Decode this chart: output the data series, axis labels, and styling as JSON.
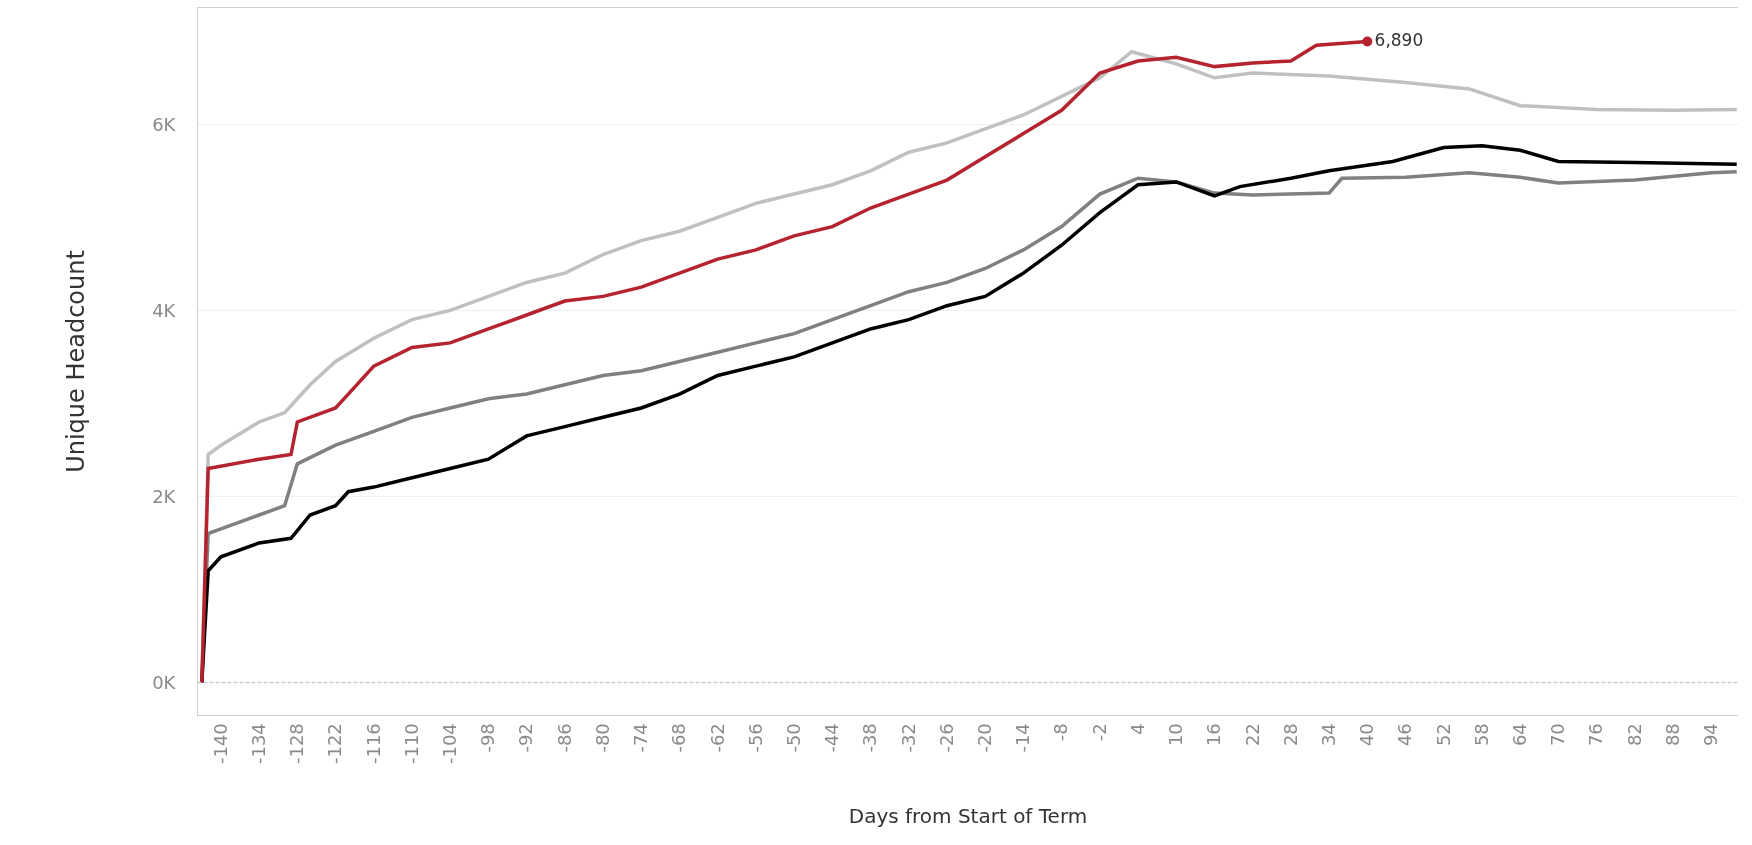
{
  "chart_data": {
    "type": "line",
    "xlabel": "Days from Start of Term",
    "ylabel": "Unique Headcount",
    "xlim": [
      -143.6,
      98.2
    ],
    "ylim": [
      -350,
      7250
    ],
    "xticks": [
      -140,
      -134,
      -128,
      -122,
      -116,
      -110,
      -104,
      -98,
      -92,
      -86,
      -80,
      -74,
      -68,
      -62,
      -56,
      -50,
      -44,
      -38,
      -32,
      -26,
      -20,
      -14,
      -8,
      -2,
      4,
      10,
      16,
      22,
      28,
      34,
      40,
      46,
      52,
      58,
      64,
      70,
      76,
      82,
      88,
      94
    ],
    "yticks": [
      {
        "value": 0,
        "label": "0K"
      },
      {
        "value": 2000,
        "label": "2K"
      },
      {
        "value": 4000,
        "label": "4K"
      },
      {
        "value": 6000,
        "label": "6K"
      }
    ],
    "grid": "y",
    "line_style": "solid",
    "ref_lines": [
      {
        "axis": "y",
        "value": 0,
        "label": null,
        "color": "#c8c8c8",
        "line_style": "dotted"
      }
    ],
    "series": [
      {
        "color": "#c0c0c0",
        "x": [
          -143,
          -142,
          -140,
          -134,
          -130,
          -126,
          -122,
          -116,
          -110,
          -104,
          -98,
          -92,
          -86,
          -80,
          -74,
          -68,
          -62,
          -56,
          -50,
          -44,
          -38,
          -32,
          -26,
          -20,
          -14,
          -8,
          -2,
          3,
          10,
          16,
          22,
          34,
          46,
          56,
          64,
          76,
          88,
          98
        ],
        "values": [
          0,
          2450,
          2550,
          2800,
          2900,
          3200,
          3450,
          3700,
          3900,
          4000,
          4150,
          4300,
          4400,
          4600,
          4750,
          4850,
          5000,
          5150,
          5250,
          5350,
          5500,
          5700,
          5800,
          5950,
          6100,
          6300,
          6500,
          6780,
          6650,
          6500,
          6550,
          6520,
          6450,
          6380,
          6200,
          6160,
          6150,
          6160
        ]
      },
      {
        "color": "#808080",
        "x": [
          -143,
          -142,
          -140,
          -134,
          -130,
          -128,
          -122,
          -116,
          -110,
          -104,
          -98,
          -92,
          -86,
          -80,
          -74,
          -68,
          -62,
          -56,
          -50,
          -44,
          -38,
          -32,
          -26,
          -20,
          -14,
          -8,
          -2,
          4,
          10,
          16,
          22,
          34,
          36,
          46,
          56,
          64,
          70,
          82,
          94,
          98
        ],
        "values": [
          0,
          1600,
          1650,
          1800,
          1900,
          2350,
          2550,
          2700,
          2850,
          2950,
          3050,
          3100,
          3200,
          3300,
          3350,
          3450,
          3550,
          3650,
          3750,
          3900,
          4050,
          4200,
          4300,
          4450,
          4650,
          4900,
          5250,
          5420,
          5380,
          5260,
          5240,
          5260,
          5420,
          5430,
          5480,
          5430,
          5370,
          5400,
          5480,
          5490
        ]
      },
      {
        "color": "#000000",
        "x": [
          -143,
          -142,
          -140,
          -134,
          -129,
          -126,
          -122,
          -120,
          -116,
          -110,
          -104,
          -98,
          -92,
          -86,
          -80,
          -74,
          -68,
          -62,
          -56,
          -50,
          -44,
          -38,
          -32,
          -26,
          -20,
          -14,
          -8,
          -2,
          4,
          10,
          16,
          20,
          28,
          34,
          44,
          52,
          58,
          64,
          70,
          82,
          98
        ],
        "values": [
          0,
          1200,
          1350,
          1500,
          1550,
          1800,
          1900,
          2050,
          2100,
          2200,
          2300,
          2400,
          2650,
          2750,
          2850,
          2950,
          3100,
          3300,
          3400,
          3500,
          3650,
          3800,
          3900,
          4050,
          4150,
          4400,
          4700,
          5050,
          5350,
          5380,
          5230,
          5330,
          5420,
          5500,
          5600,
          5750,
          5770,
          5720,
          5600,
          5590,
          5570
        ]
      },
      {
        "color": "#b5232f",
        "x": [
          -143,
          -142,
          -134,
          -129,
          -128,
          -122,
          -120,
          -116,
          -110,
          -104,
          -98,
          -92,
          -86,
          -80,
          -74,
          -68,
          -62,
          -56,
          -50,
          -44,
          -38,
          -32,
          -26,
          -20,
          -14,
          -8,
          -2,
          4,
          10,
          16,
          22,
          28,
          32,
          40
        ],
        "values": [
          0,
          2300,
          2400,
          2450,
          2800,
          2950,
          3100,
          3400,
          3600,
          3650,
          3800,
          3950,
          4100,
          4150,
          4250,
          4400,
          4550,
          4650,
          4800,
          4900,
          5100,
          5250,
          5400,
          5650,
          5900,
          6150,
          6550,
          6680,
          6720,
          6620,
          6660,
          6680,
          6850,
          6890
        ],
        "value_labels": [
          null,
          null,
          null,
          null,
          null,
          null,
          null,
          null,
          null,
          null,
          null,
          null,
          null,
          null,
          null,
          null,
          null,
          null,
          null,
          null,
          null,
          null,
          null,
          null,
          null,
          null,
          null,
          null,
          null,
          null,
          null,
          null,
          null,
          "6,890"
        ]
      }
    ]
  }
}
